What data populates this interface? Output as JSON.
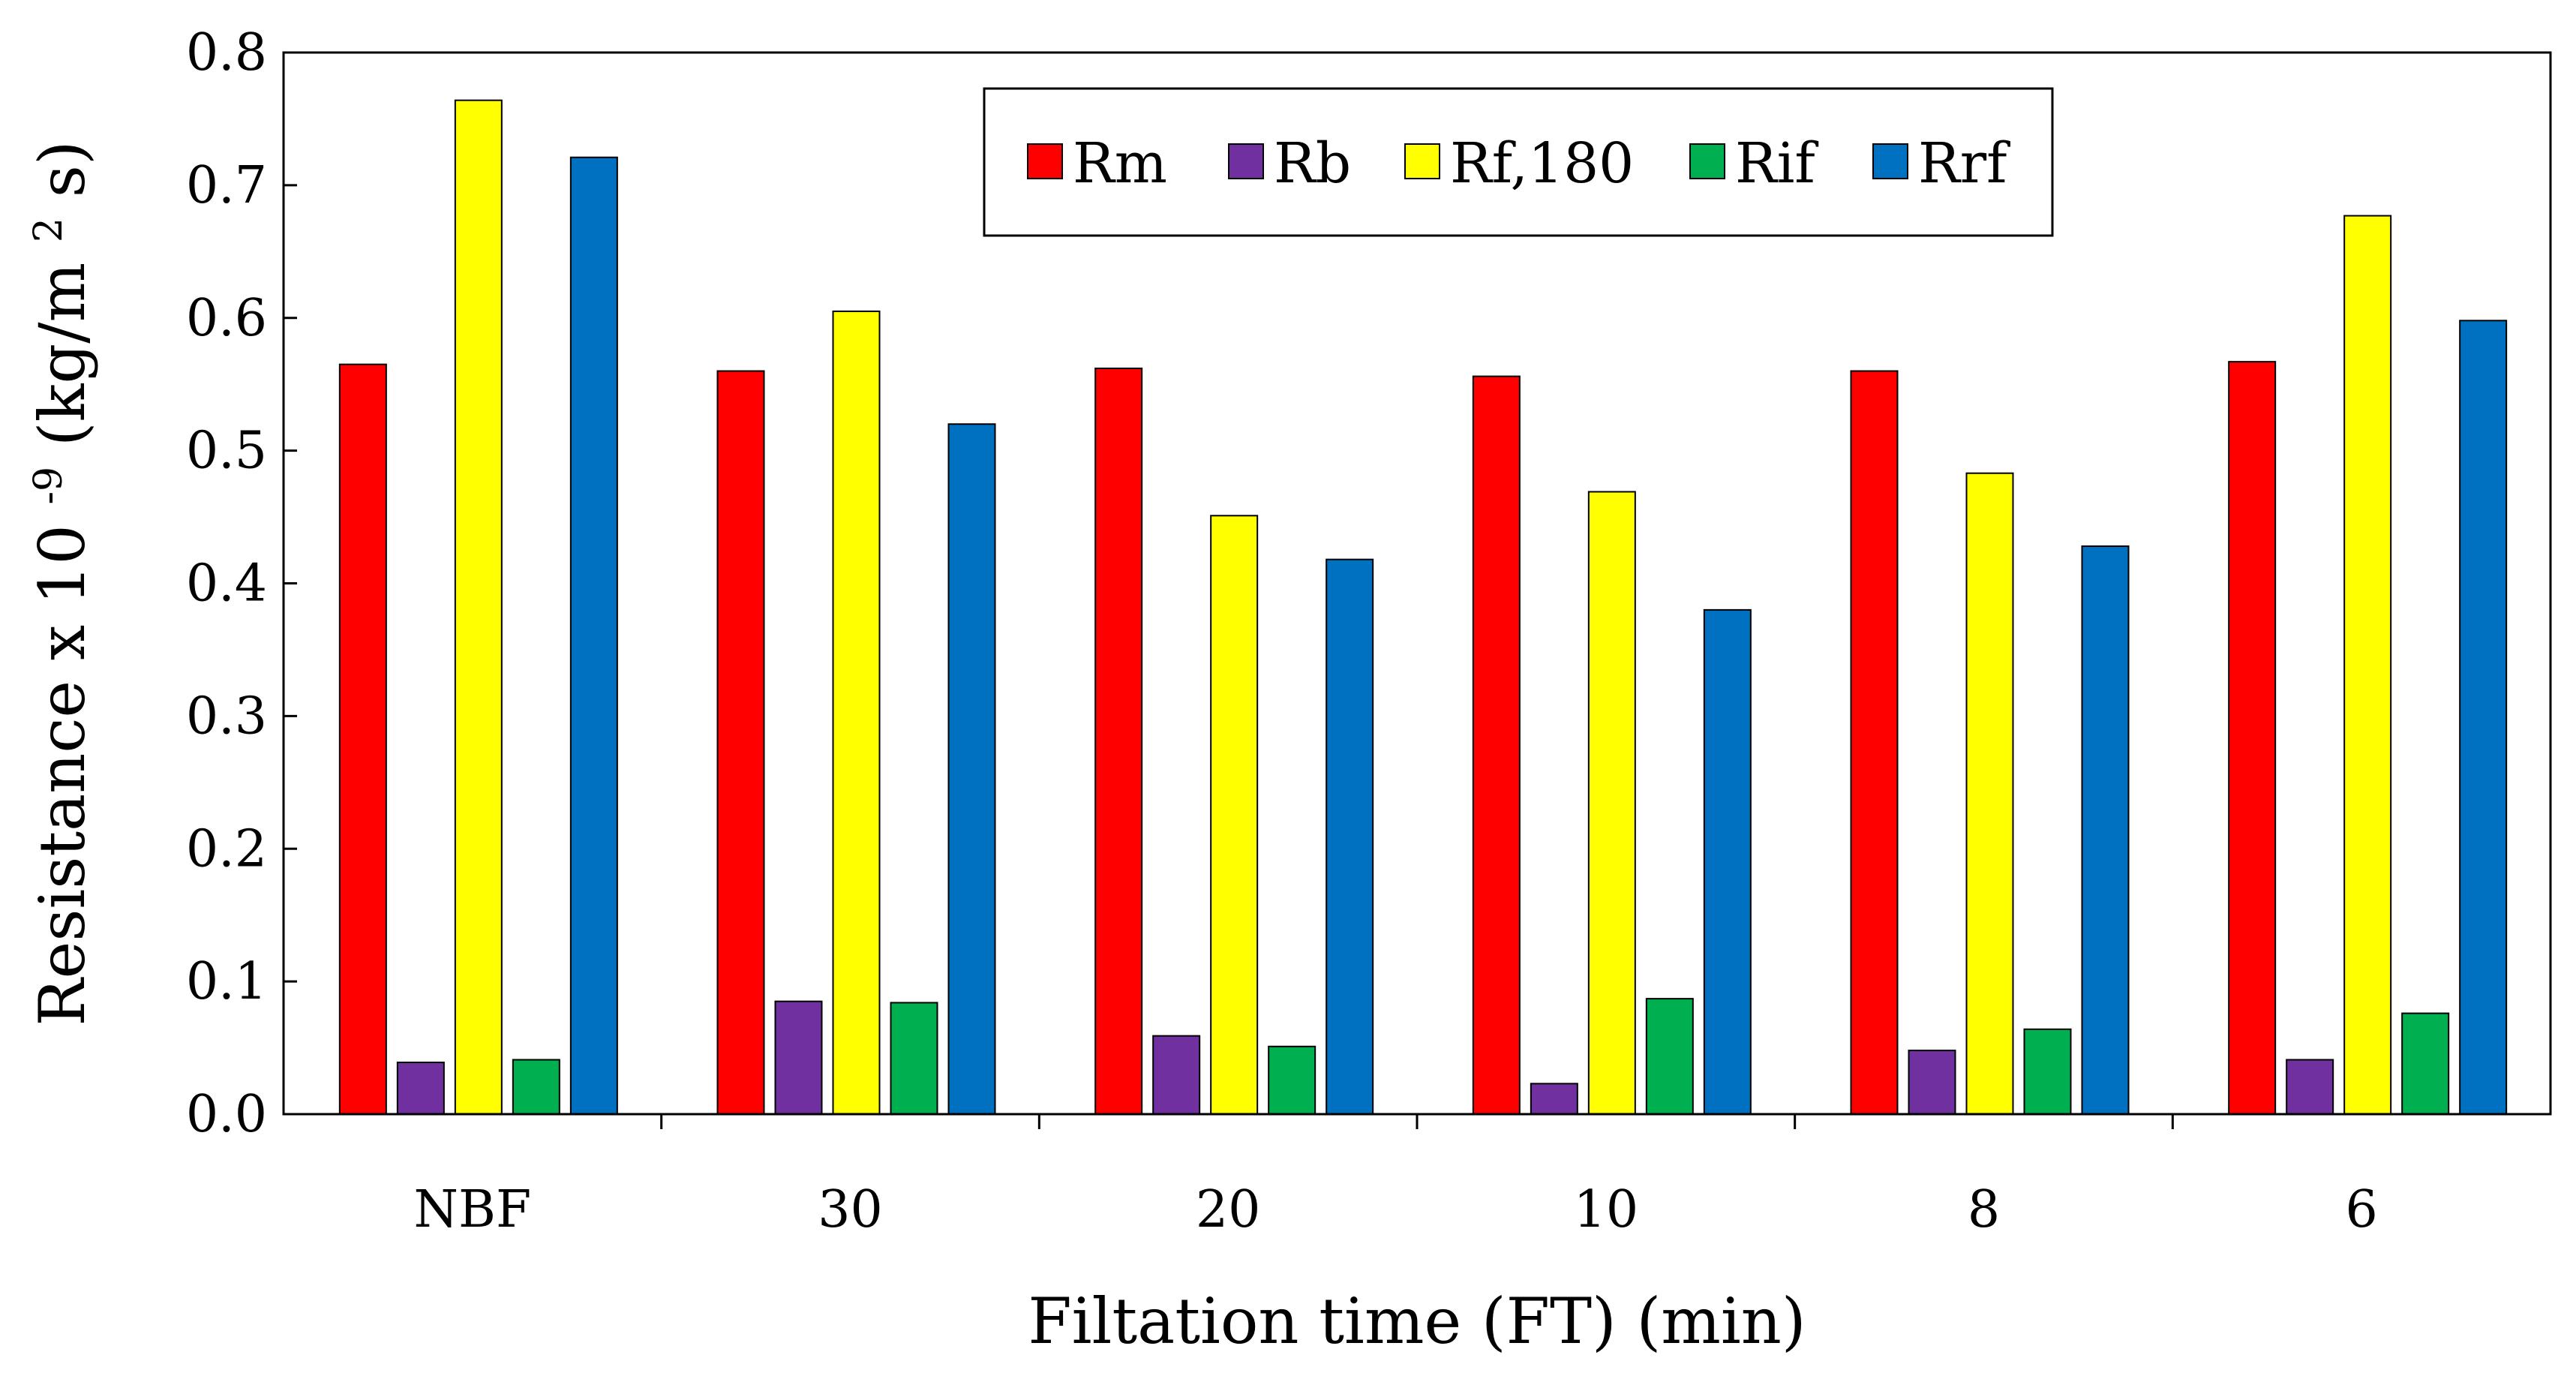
{
  "chart_data": {
    "type": "bar",
    "title": "",
    "xlabel": "Filtation time (FT) (min)",
    "ylabel": {
      "prefix": "Resistance x 10",
      "exponent": "-9",
      "unit_open": "(kg/m",
      "unit_sup": "2",
      "unit_close": "s)"
    },
    "ylim": [
      0,
      0.8
    ],
    "yticks": [
      "0.0",
      "0.1",
      "0.2",
      "0.3",
      "0.4",
      "0.5",
      "0.6",
      "0.7",
      "0.8"
    ],
    "categories": [
      "NBF",
      "30",
      "20",
      "10",
      "8",
      "6"
    ],
    "legend_position": "top-center",
    "grid": false,
    "series": [
      {
        "name": "Rm",
        "color": "#ff0000",
        "values": [
          0.565,
          0.56,
          0.562,
          0.556,
          0.56,
          0.567
        ]
      },
      {
        "name": "Rb",
        "color": "#7030a0",
        "values": [
          0.039,
          0.085,
          0.059,
          0.023,
          0.048,
          0.041
        ]
      },
      {
        "name": "Rf,180",
        "color": "#ffff00",
        "values": [
          0.764,
          0.605,
          0.451,
          0.469,
          0.483,
          0.677
        ]
      },
      {
        "name": "Rif",
        "color": "#00b050",
        "values": [
          0.041,
          0.084,
          0.051,
          0.087,
          0.064,
          0.076
        ]
      },
      {
        "name": "Rrf",
        "color": "#0070c0",
        "values": [
          0.721,
          0.52,
          0.418,
          0.38,
          0.428,
          0.598
        ]
      }
    ]
  }
}
